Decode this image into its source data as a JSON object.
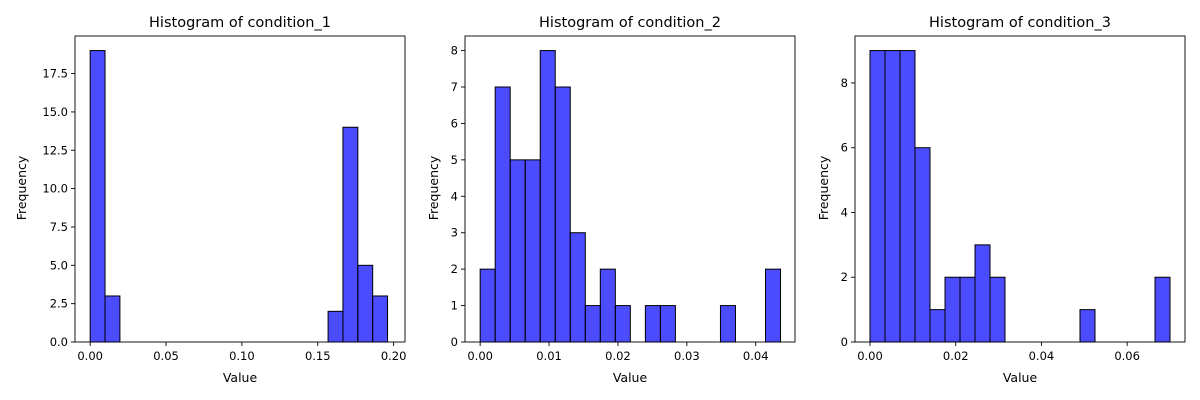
{
  "chart_data": [
    {
      "type": "bar",
      "title": "Histogram of condition_1",
      "xlabel": "Value",
      "ylabel": "Frequency",
      "xlim": [
        -0.01,
        0.2075
      ],
      "ylim": [
        0,
        19.95
      ],
      "xticks": [
        "0.00",
        "0.05",
        "0.10",
        "0.15",
        "0.20"
      ],
      "xtick_values": [
        0,
        0.05,
        0.1,
        0.15,
        0.2
      ],
      "yticks": [
        "0.0",
        "2.5",
        "5.0",
        "7.5",
        "10.0",
        "12.5",
        "15.0",
        "17.5"
      ],
      "ytick_values": [
        0,
        2.5,
        5,
        7.5,
        10,
        12.5,
        15,
        17.5
      ],
      "bar_color": "#0000ff",
      "edge_color": "#000000",
      "bins": [
        {
          "x0": 0.0,
          "x1": 0.0098,
          "count": 19
        },
        {
          "x0": 0.0098,
          "x1": 0.0196,
          "count": 3
        },
        {
          "x0": 0.1568,
          "x1": 0.1666,
          "count": 2
        },
        {
          "x0": 0.1666,
          "x1": 0.1764,
          "count": 14
        },
        {
          "x0": 0.1764,
          "x1": 0.1862,
          "count": 5
        },
        {
          "x0": 0.1862,
          "x1": 0.196,
          "count": 3
        }
      ]
    },
    {
      "type": "bar",
      "title": "Histogram of condition_2",
      "xlabel": "Value",
      "ylabel": "Frequency",
      "xlim": [
        -0.0022,
        0.0457
      ],
      "ylim": [
        0,
        8.4
      ],
      "xticks": [
        "0.00",
        "0.01",
        "0.02",
        "0.03",
        "0.04"
      ],
      "xtick_values": [
        0,
        0.01,
        0.02,
        0.03,
        0.04
      ],
      "yticks": [
        "0",
        "1",
        "2",
        "3",
        "4",
        "5",
        "6",
        "7",
        "8"
      ],
      "ytick_values": [
        0,
        1,
        2,
        3,
        4,
        5,
        6,
        7,
        8
      ],
      "bar_color": "#0000ff",
      "edge_color": "#000000",
      "bins": [
        {
          "x0": 0.0,
          "x1": 0.00218,
          "count": 2
        },
        {
          "x0": 0.00218,
          "x1": 0.00436,
          "count": 7
        },
        {
          "x0": 0.00436,
          "x1": 0.00654,
          "count": 5
        },
        {
          "x0": 0.00654,
          "x1": 0.00872,
          "count": 5
        },
        {
          "x0": 0.00872,
          "x1": 0.0109,
          "count": 8
        },
        {
          "x0": 0.0109,
          "x1": 0.01308,
          "count": 7
        },
        {
          "x0": 0.01308,
          "x1": 0.01526,
          "count": 3
        },
        {
          "x0": 0.01526,
          "x1": 0.01744,
          "count": 1
        },
        {
          "x0": 0.01744,
          "x1": 0.01962,
          "count": 2
        },
        {
          "x0": 0.01962,
          "x1": 0.0218,
          "count": 1
        },
        {
          "x0": 0.02398,
          "x1": 0.02616,
          "count": 1
        },
        {
          "x0": 0.02616,
          "x1": 0.02834,
          "count": 1
        },
        {
          "x0": 0.03488,
          "x1": 0.03706,
          "count": 1
        },
        {
          "x0": 0.04142,
          "x1": 0.0436,
          "count": 2
        }
      ]
    },
    {
      "type": "bar",
      "title": "Histogram of condition_3",
      "xlabel": "Value",
      "ylabel": "Frequency",
      "xlim": [
        -0.0035,
        0.0735
      ],
      "ylim": [
        0,
        9.45
      ],
      "xticks": [
        "0.00",
        "0.02",
        "0.04",
        "0.06"
      ],
      "xtick_values": [
        0,
        0.02,
        0.04,
        0.06
      ],
      "yticks": [
        "0",
        "2",
        "4",
        "6",
        "8"
      ],
      "ytick_values": [
        0,
        2,
        4,
        6,
        8
      ],
      "bar_color": "#0000ff",
      "edge_color": "#000000",
      "bins": [
        {
          "x0": 0.0,
          "x1": 0.0035,
          "count": 9
        },
        {
          "x0": 0.0035,
          "x1": 0.007,
          "count": 9
        },
        {
          "x0": 0.007,
          "x1": 0.0105,
          "count": 9
        },
        {
          "x0": 0.0105,
          "x1": 0.014,
          "count": 6
        },
        {
          "x0": 0.014,
          "x1": 0.0175,
          "count": 1
        },
        {
          "x0": 0.0175,
          "x1": 0.021,
          "count": 2
        },
        {
          "x0": 0.021,
          "x1": 0.0245,
          "count": 2
        },
        {
          "x0": 0.0245,
          "x1": 0.028,
          "count": 3
        },
        {
          "x0": 0.028,
          "x1": 0.0315,
          "count": 2
        },
        {
          "x0": 0.049,
          "x1": 0.0525,
          "count": 1
        },
        {
          "x0": 0.0665,
          "x1": 0.07,
          "count": 2
        }
      ]
    }
  ]
}
